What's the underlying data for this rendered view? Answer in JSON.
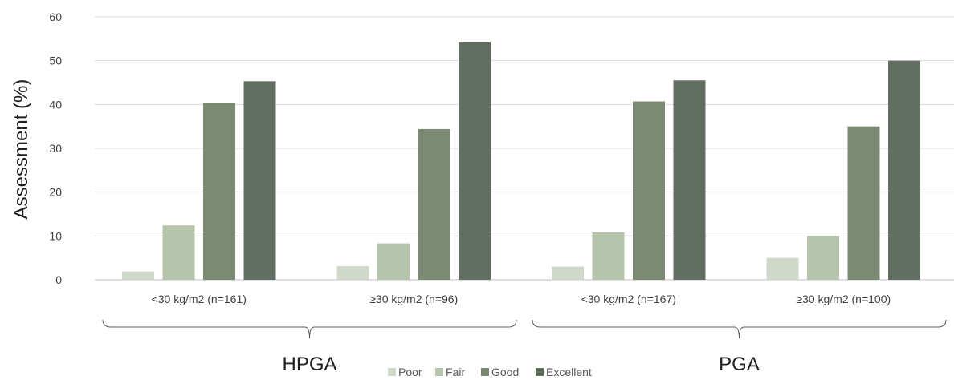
{
  "chart_data": {
    "type": "bar",
    "ylabel": "Assessment (%)",
    "ylim": [
      0,
      60
    ],
    "yticks": [
      0,
      10,
      20,
      30,
      40,
      50,
      60
    ],
    "grid": true,
    "legend_position": "bottom",
    "categories": [
      "<30 kg/m2 (n=161)",
      "≥30 kg/m2 (n=96)",
      "<30 kg/m2 (n=167)",
      "≥30 kg/m2 (n=100)"
    ],
    "groups": [
      {
        "label": "HPGA",
        "categories": [
          0,
          1
        ]
      },
      {
        "label": "PGA",
        "categories": [
          2,
          3
        ]
      }
    ],
    "series": [
      {
        "name": "Poor",
        "color": "#cfd8c9",
        "values": [
          1.9,
          3.1,
          3.0,
          5.0
        ]
      },
      {
        "name": "Fair",
        "color": "#b5c4aa",
        "values": [
          12.4,
          8.3,
          10.8,
          10.0
        ]
      },
      {
        "name": "Good",
        "color": "#7c8a74",
        "values": [
          40.4,
          34.4,
          40.7,
          35.0
        ]
      },
      {
        "name": "Excellent",
        "color": "#636e62",
        "values": [
          45.3,
          54.2,
          45.5,
          50.0
        ]
      }
    ]
  }
}
